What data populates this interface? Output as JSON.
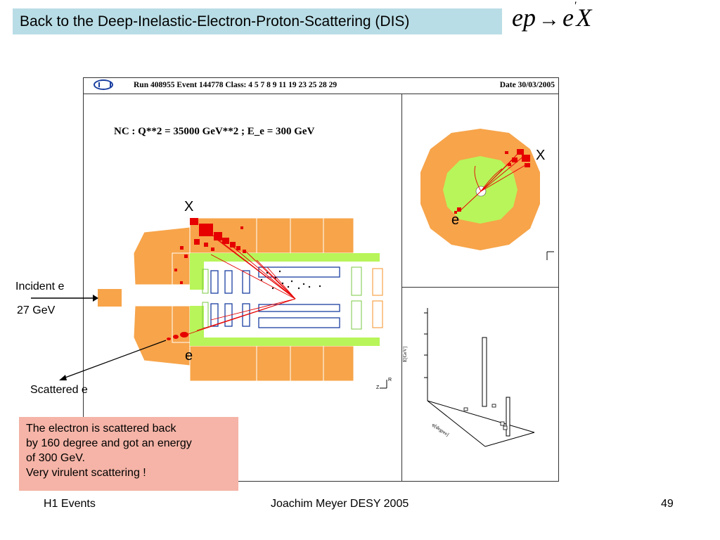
{
  "slide": {
    "title": "Back to the Deep-Inelastic-Electron-Proton-Scattering (DIS)",
    "formula": {
      "lhs": "ep",
      "arrow": "→",
      "e": "e",
      "prime": "'",
      "x": "X"
    }
  },
  "event_display": {
    "header": {
      "run": "Run 408955 Event 144778 Class: 4 5 7 8 9 11 19 23 25 28 29",
      "date": "Date 30/03/2005"
    },
    "nc_label": "NC : Q**2 = 35000 GeV**2 ; E_e = 300 GeV",
    "side_view": {
      "x_label": "X",
      "e_label": "e",
      "axis_r": "R",
      "axis_z": "Z"
    },
    "radial_view": {
      "x_label": "X",
      "e_label": "e"
    },
    "lego_plot": {
      "z_label": "E[GeV]",
      "phi_label": "φ[degree]"
    }
  },
  "annotations": {
    "incident_line1": "Incident e",
    "incident_line2": "27 GeV",
    "scattered": "Scattered e"
  },
  "note": {
    "lines": [
      "The electron is scattered back",
      "by 160 degree and got an energy",
      "of 300 GeV.",
      "Very virulent scattering !"
    ]
  },
  "footer": {
    "left": "H1 Events",
    "center": "Joachim Meyer  DESY  2005",
    "page": "49"
  },
  "colors": {
    "title_bg": "#b9dde6",
    "note_bg": "#f5b4a7",
    "calorimeter": "#f7a44a",
    "tracker": "#b8f55a",
    "hits": "#e60000",
    "chamber": "#1a3fa0"
  }
}
